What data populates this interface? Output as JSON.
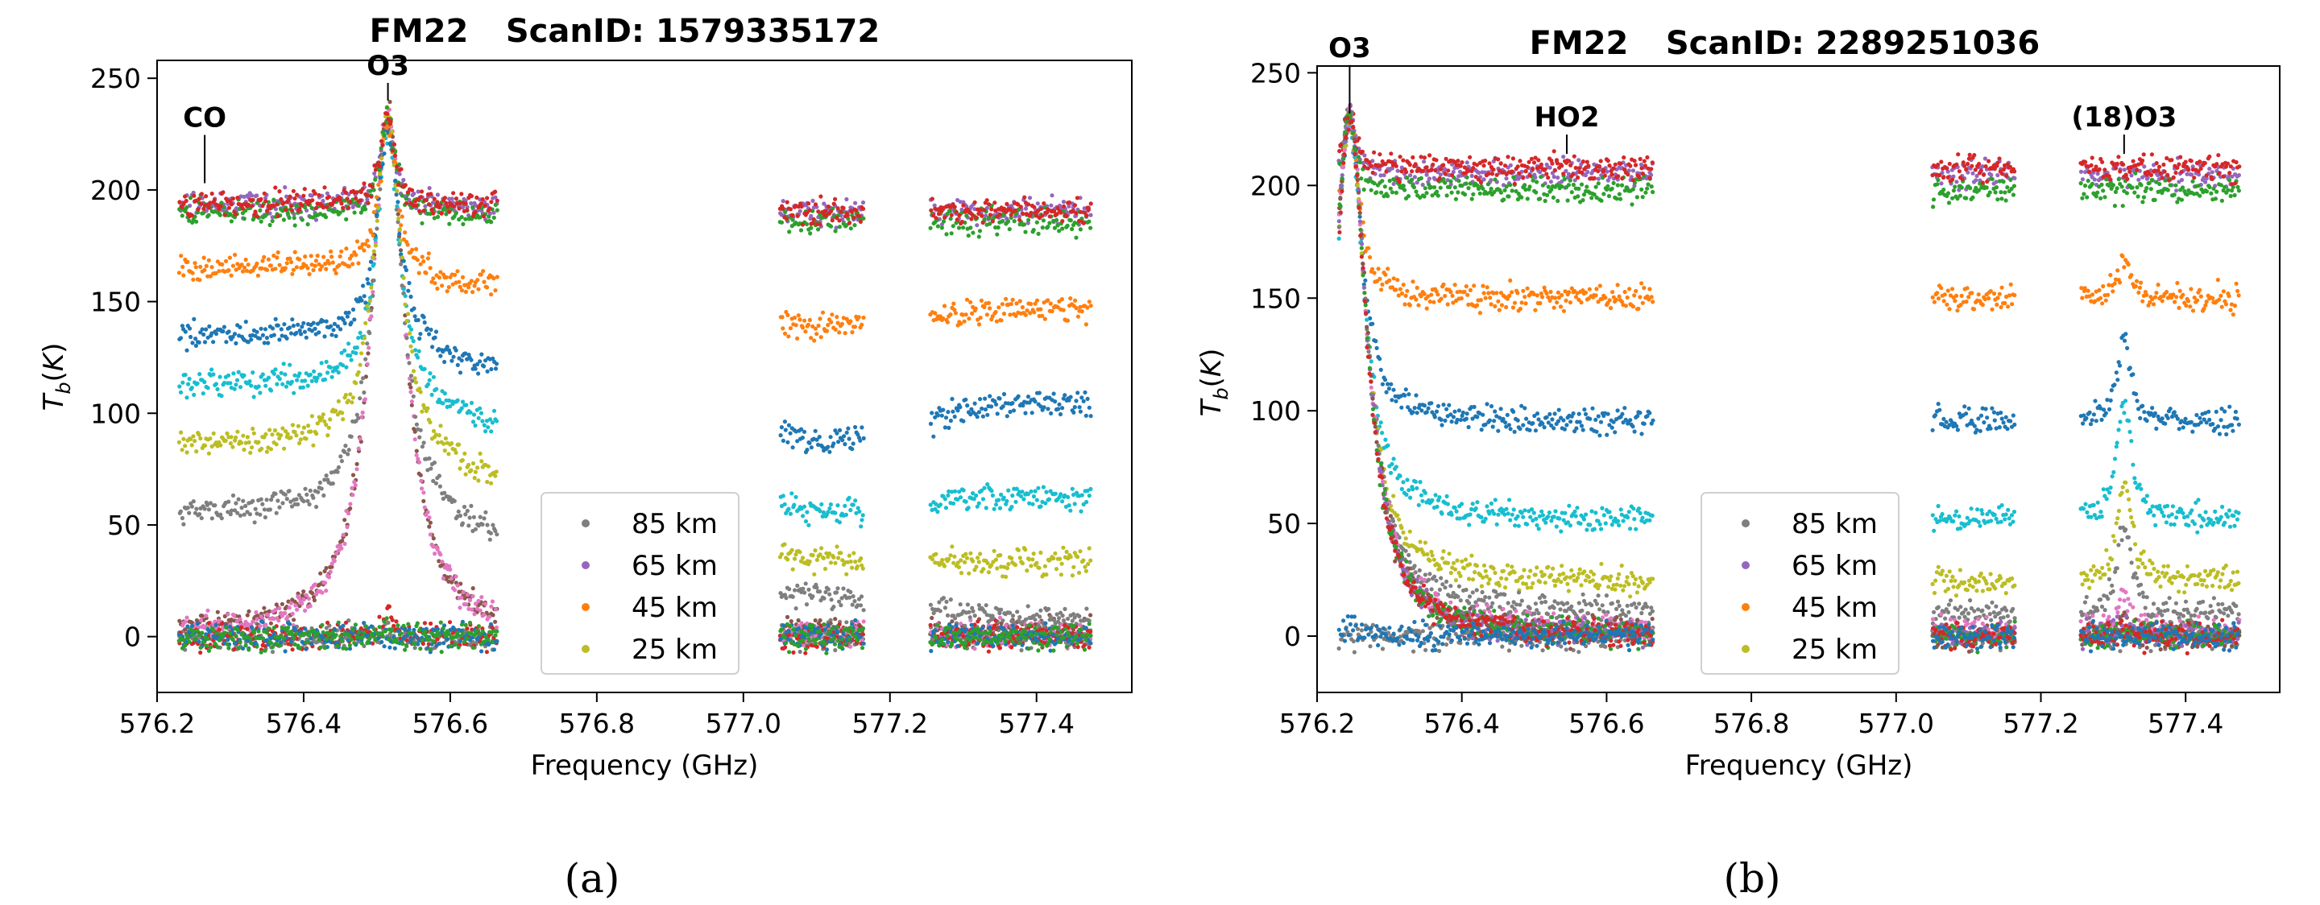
{
  "figure": {
    "captions": [
      "(a)",
      "(b)"
    ]
  },
  "chart_data": [
    {
      "type": "scatter",
      "title_parts": [
        "FM22",
        "ScanID: 1579335172"
      ],
      "xlabel": "Frequency (GHz)",
      "ylabel": "T_b(K)",
      "xlim": [
        576.2,
        577.53
      ],
      "ylim": [
        -25,
        258
      ],
      "xticks": [
        576.2,
        576.4,
        576.6,
        576.8,
        577.0,
        577.2,
        577.4
      ],
      "xtick_labels": [
        "576.2",
        "576.4",
        "576.6",
        "576.8",
        "577.0",
        "577.2",
        "577.4"
      ],
      "yticks": [
        0,
        50,
        100,
        150,
        200,
        250
      ],
      "ytick_labels": [
        "0",
        "50",
        "100",
        "150",
        "200",
        "250"
      ],
      "grid": false,
      "legend_position": "lower-center",
      "legend": [
        {
          "label": "85 km",
          "color": "#7f7f7f"
        },
        {
          "label": "65 km",
          "color": "#9467bd"
        },
        {
          "label": "45 km",
          "color": "#ff7f0e"
        },
        {
          "label": "25 km",
          "color": "#bcbd22"
        }
      ],
      "annotations": [
        {
          "text": "CO",
          "x": 576.265,
          "y": 203
        },
        {
          "text": "O3",
          "x": 576.515,
          "y": 240
        }
      ],
      "bands": [
        [
          576.23,
          576.665
        ],
        [
          577.05,
          577.165
        ],
        [
          577.255,
          577.475
        ]
      ],
      "line_centers": [
        576.515
      ],
      "series": [
        {
          "color": "#7f7f7f",
          "continuum": [
            0,
            0,
            0
          ],
          "peaks": [
            0
          ]
        },
        {
          "color": "#9467bd",
          "continuum": [
            193,
            190,
            190
          ],
          "peaks": [
            37
          ]
        },
        {
          "color": "#8c564b",
          "continuum": [
            2,
            2,
            2
          ],
          "peaks": [
            233
          ]
        },
        {
          "color": "#e377c2",
          "continuum": [
            1,
            1,
            1
          ],
          "peaks": [
            234
          ]
        },
        {
          "color": "#7f7f7f",
          "continuum": [
            55,
            18,
            8
          ],
          "peaks": [
            180
          ]
        },
        {
          "color": "#17becf",
          "continuum": [
            113,
            55,
            62
          ],
          "peaks": [
            120
          ]
        },
        {
          "color": "#1f77b4",
          "continuum": [
            135,
            87,
            105
          ],
          "peaks": [
            100
          ]
        },
        {
          "color": "#ff7f0e",
          "continuum": [
            165,
            138,
            147
          ],
          "peaks": [
            68
          ]
        },
        {
          "color": "#bcbd22",
          "continuum": [
            86,
            33,
            33
          ],
          "peaks": [
            155
          ]
        },
        {
          "color": "#2ca02c",
          "continuum": [
            190,
            186,
            186
          ],
          "peaks": [
            44
          ]
        },
        {
          "color": "#d62728",
          "continuum": [
            194,
            190,
            190
          ],
          "peaks": [
            40
          ]
        },
        {
          "color": "#d62728",
          "continuum": [
            0,
            0,
            0
          ],
          "peaks": [
            10
          ]
        },
        {
          "color": "#1f77b4",
          "continuum": [
            0,
            0,
            0
          ],
          "peaks": [
            0
          ]
        },
        {
          "color": "#2ca02c",
          "continuum": [
            0,
            0,
            0
          ],
          "peaks": [
            5
          ]
        }
      ]
    },
    {
      "type": "scatter",
      "title_parts": [
        "FM22",
        "ScanID: 2289251036"
      ],
      "xlabel": "Frequency (GHz)",
      "ylabel": "T_b(K)",
      "xlim": [
        576.2,
        577.53
      ],
      "ylim": [
        -25,
        253
      ],
      "xticks": [
        576.2,
        576.4,
        576.6,
        576.8,
        577.0,
        577.2,
        577.4
      ],
      "xtick_labels": [
        "576.2",
        "576.4",
        "576.6",
        "576.8",
        "577.0",
        "577.2",
        "577.4"
      ],
      "yticks": [
        0,
        50,
        100,
        150,
        200,
        250
      ],
      "ytick_labels": [
        "0",
        "50",
        "100",
        "150",
        "200",
        "250"
      ],
      "grid": false,
      "legend_position": "lower-center",
      "legend": [
        {
          "label": "85 km",
          "color": "#7f7f7f"
        },
        {
          "label": "65 km",
          "color": "#9467bd"
        },
        {
          "label": "45 km",
          "color": "#ff7f0e"
        },
        {
          "label": "25 km",
          "color": "#bcbd22"
        }
      ],
      "annotations": [
        {
          "text": "O3",
          "x": 576.245,
          "y": 232
        },
        {
          "text": "HO2",
          "x": 576.545,
          "y": 214
        },
        {
          "text": "(18)O3",
          "x": 577.315,
          "y": 214
        }
      ],
      "bands": [
        [
          576.23,
          576.665
        ],
        [
          577.05,
          577.165
        ],
        [
          577.255,
          577.475
        ]
      ],
      "line_centers": [
        576.245,
        577.315
      ],
      "series": [
        {
          "color": "#7f7f7f",
          "continuum": [
            0,
            0,
            0
          ],
          "peaks": [
            0,
            0
          ]
        },
        {
          "color": "#9467bd",
          "continuum": [
            205,
            205,
            205
          ],
          "peaks": [
            25,
            0
          ]
        },
        {
          "color": "#2ca02c",
          "continuum": [
            198,
            198,
            198
          ],
          "peaks": [
            30,
            0
          ]
        },
        {
          "color": "#d62728",
          "continuum": [
            208,
            208,
            208
          ],
          "peaks": [
            25,
            0
          ]
        },
        {
          "color": "#ff7f0e",
          "continuum": [
            150,
            150,
            150
          ],
          "peaks": [
            80,
            17
          ]
        },
        {
          "color": "#1f77b4",
          "continuum": [
            95,
            95,
            95
          ],
          "peaks": [
            135,
            37
          ]
        },
        {
          "color": "#17becf",
          "continuum": [
            52,
            52,
            52
          ],
          "peaks": [
            175,
            50
          ]
        },
        {
          "color": "#bcbd22",
          "continuum": [
            24,
            24,
            24
          ],
          "peaks": [
            205,
            45
          ]
        },
        {
          "color": "#7f7f7f",
          "continuum": [
            10,
            10,
            10
          ],
          "peaks": [
            222,
            40
          ]
        },
        {
          "color": "#e377c2",
          "continuum": [
            2,
            2,
            2
          ],
          "peaks": [
            230,
            18
          ]
        },
        {
          "color": "#8c564b",
          "continuum": [
            0,
            0,
            0
          ],
          "peaks": [
            232,
            8
          ]
        },
        {
          "color": "#9467bd",
          "continuum": [
            0,
            0,
            0
          ],
          "peaks": [
            232,
            4
          ]
        },
        {
          "color": "#2ca02c",
          "continuum": [
            0,
            0,
            0
          ],
          "peaks": [
            230,
            2
          ]
        },
        {
          "color": "#d62728",
          "continuum": [
            0,
            0,
            0
          ],
          "peaks": [
            227,
            2
          ]
        },
        {
          "color": "#1f77b4",
          "continuum": [
            0,
            0,
            0
          ],
          "peaks": [
            5,
            0
          ]
        }
      ]
    }
  ]
}
